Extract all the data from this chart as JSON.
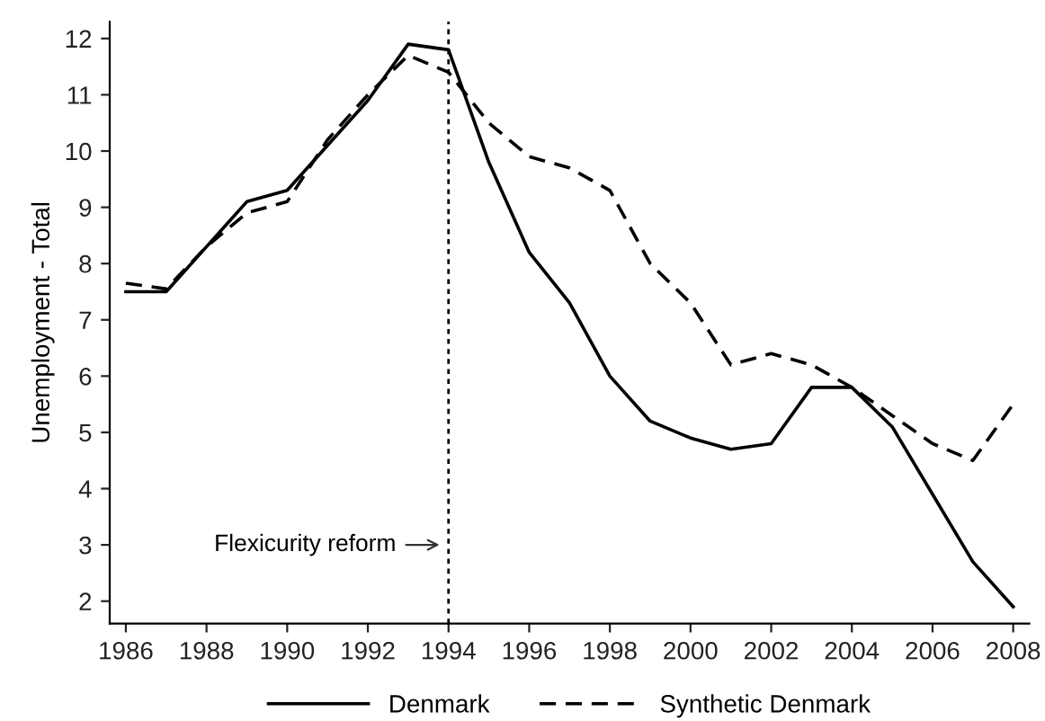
{
  "chart_data": {
    "type": "line",
    "ylabel": "Unemployment - Total",
    "x": [
      1986,
      1987,
      1988,
      1989,
      1990,
      1991,
      1992,
      1993,
      1994,
      1995,
      1996,
      1997,
      1998,
      1999,
      2000,
      2001,
      2002,
      2003,
      2004,
      2005,
      2006,
      2007,
      2008
    ],
    "series": [
      {
        "name": "Denmark",
        "color": "#000000",
        "line_style": "solid",
        "values": [
          7.5,
          7.5,
          8.3,
          9.1,
          9.3,
          10.1,
          10.9,
          11.9,
          11.8,
          9.8,
          8.2,
          7.3,
          6.0,
          5.2,
          4.9,
          4.7,
          4.8,
          5.8,
          5.8,
          5.1,
          3.9,
          2.7,
          1.9
        ]
      },
      {
        "name": "Synthetic Denmark",
        "color": "#000000",
        "line_style": "dashed",
        "values": [
          7.65,
          7.55,
          8.3,
          8.9,
          9.1,
          10.2,
          11.0,
          11.7,
          11.4,
          10.5,
          9.9,
          9.7,
          9.3,
          8.0,
          7.3,
          6.2,
          6.4,
          6.2,
          5.8,
          5.3,
          4.8,
          4.5,
          5.5
        ]
      }
    ],
    "xlim": [
      1985.6,
      2008.4
    ],
    "ylim": [
      1.6,
      12.3
    ],
    "xticks": [
      1986,
      1988,
      1990,
      1992,
      1994,
      1996,
      1998,
      2000,
      2002,
      2004,
      2006,
      2008
    ],
    "yticks": [
      2,
      3,
      4,
      5,
      6,
      7,
      8,
      9,
      10,
      11,
      12
    ],
    "ref_lines": [
      {
        "axis": "x",
        "value": 1994,
        "color": "#000000",
        "line_style": "dotted"
      }
    ],
    "annotations": [
      {
        "text": "Flexicurity reform",
        "x": 1994,
        "y": 3
      }
    ],
    "grid": false,
    "legend": "bottom",
    "marker": "none"
  }
}
